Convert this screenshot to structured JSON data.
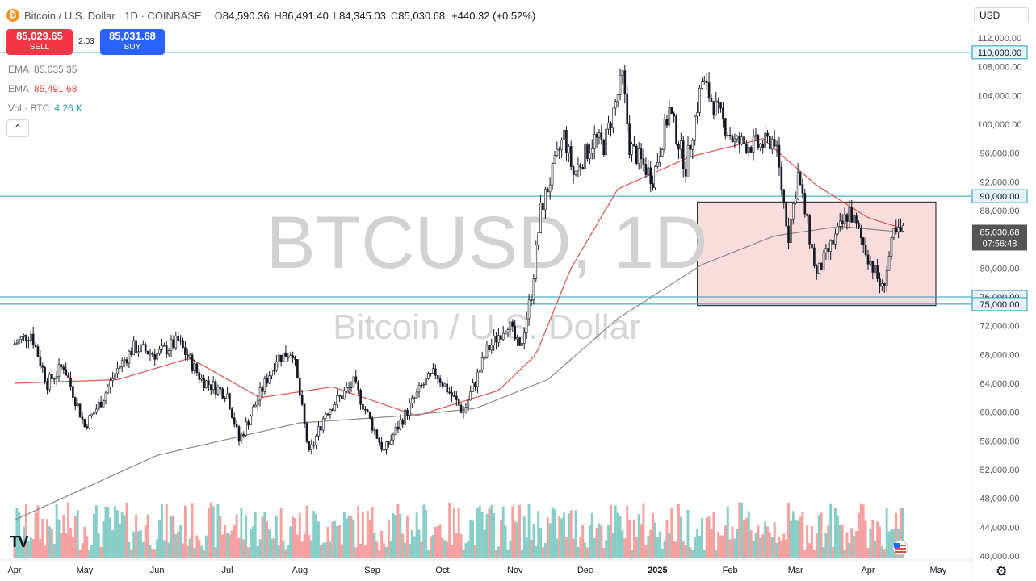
{
  "header": {
    "title": "Bitcoin / U.S. Dollar · 1D · COINBASE",
    "o_label": "O",
    "o_value": "84,590.36",
    "h_label": "H",
    "h_value": "86,491.40",
    "l_label": "L",
    "l_value": "84,345.03",
    "c_label": "C",
    "c_value": "85,030.68",
    "change": "+440.32 (+0.52%)"
  },
  "trade": {
    "sell_price": "85,029.65",
    "sell_label": "SELL",
    "spread": "2.03",
    "buy_price": "85,031.68",
    "buy_label": "BUY"
  },
  "indicators": [
    {
      "name": "EMA",
      "value": "85,035.35",
      "color": "#787b86"
    },
    {
      "name": "EMA",
      "value": "85,491.68",
      "color": "#e04c4c"
    },
    {
      "name": "Vol · BTC",
      "value": "4.26 K",
      "color": "#26a69a"
    }
  ],
  "currency": "USD",
  "watermark": {
    "main": "BTCUSD, 1D",
    "sub": "Bitcoin / U.S. Dollar"
  },
  "colors": {
    "up": "#26a69a",
    "down": "#ef5350",
    "level_line": "#1e9eb5",
    "ema_fast": "#d9534f",
    "ema_slow": "#888888",
    "box_fill": "#f5c6c6"
  },
  "chart_data": {
    "type": "candlestick",
    "y_ticks": [
      "112,000.00",
      "108,000.00",
      "104,000.00",
      "100,000.00",
      "96,000.00",
      "92,000.00",
      "88,000.00",
      "84,000.00",
      "80,000.00",
      "76,000.00",
      "72,000.00",
      "68,000.00",
      "64,000.00",
      "60,000.00",
      "56,000.00",
      "52,000.00",
      "48,000.00",
      "44,000.00",
      "40,000.00"
    ],
    "y_tick_values": [
      112000,
      108000,
      104000,
      100000,
      96000,
      92000,
      88000,
      84000,
      80000,
      76000,
      72000,
      68000,
      64000,
      60000,
      56000,
      52000,
      48000,
      44000,
      40000
    ],
    "x_labels": [
      "Apr",
      "May",
      "Jun",
      "Jul",
      "Aug",
      "Sep",
      "Oct",
      "Nov",
      "Dec",
      "2025",
      "Feb",
      "Mar",
      "Apr",
      "May"
    ],
    "horizontal_levels": [
      {
        "value": 110000,
        "label": "110,000.00"
      },
      {
        "value": 90000,
        "label": "90,000.00"
      },
      {
        "value": 76000,
        "label": "76,000.00"
      },
      {
        "value": 75000,
        "label": "75,000.00"
      }
    ],
    "range_box": {
      "top": 89200,
      "bottom": 74800,
      "start": "2025-01-18",
      "end": "2025-04-30"
    },
    "current_price": {
      "value": 85030.68,
      "label": "85,030.68",
      "countdown": "07:56:48"
    },
    "close_path": [
      [
        "2024-04-01",
        69500
      ],
      [
        "2024-04-08",
        71000
      ],
      [
        "2024-04-15",
        64000
      ],
      [
        "2024-04-22",
        66500
      ],
      [
        "2024-05-01",
        58000
      ],
      [
        "2024-05-08",
        61500
      ],
      [
        "2024-05-15",
        66000
      ],
      [
        "2024-05-22",
        69000
      ],
      [
        "2024-06-01",
        68000
      ],
      [
        "2024-06-10",
        69800
      ],
      [
        "2024-06-20",
        64500
      ],
      [
        "2024-07-01",
        62500
      ],
      [
        "2024-07-06",
        56000
      ],
      [
        "2024-07-15",
        62500
      ],
      [
        "2024-07-22",
        67500
      ],
      [
        "2024-07-29",
        68500
      ],
      [
        "2024-08-05",
        54000
      ],
      [
        "2024-08-12",
        60000
      ],
      [
        "2024-08-24",
        64000
      ],
      [
        "2024-09-06",
        54500
      ],
      [
        "2024-09-12",
        58000
      ],
      [
        "2024-09-22",
        63500
      ],
      [
        "2024-09-28",
        65500
      ],
      [
        "2024-10-10",
        60000
      ],
      [
        "2024-10-20",
        68500
      ],
      [
        "2024-10-29",
        72500
      ],
      [
        "2024-11-03",
        68500
      ],
      [
        "2024-11-08",
        76500
      ],
      [
        "2024-11-12",
        88000
      ],
      [
        "2024-11-22",
        98500
      ],
      [
        "2024-11-26",
        93000
      ],
      [
        "2024-12-05",
        98000
      ],
      [
        "2024-12-09",
        97000
      ],
      [
        "2024-12-17",
        106500
      ],
      [
        "2024-12-20",
        97000
      ],
      [
        "2024-12-30",
        92500
      ],
      [
        "2025-01-06",
        102000
      ],
      [
        "2025-01-13",
        94000
      ],
      [
        "2025-01-20",
        106000
      ],
      [
        "2025-01-27",
        101500
      ],
      [
        "2025-02-03",
        97500
      ],
      [
        "2025-02-14",
        97000
      ],
      [
        "2025-02-20",
        98000
      ],
      [
        "2025-02-26",
        84500
      ],
      [
        "2025-03-02",
        93000
      ],
      [
        "2025-03-10",
        79000
      ],
      [
        "2025-03-16",
        83000
      ],
      [
        "2025-03-24",
        88000
      ],
      [
        "2025-03-31",
        82500
      ],
      [
        "2025-04-07",
        77000
      ],
      [
        "2025-04-12",
        84500
      ],
      [
        "2025-04-16",
        85030
      ]
    ],
    "ema_fast_path": [
      [
        "2024-04-01",
        64000
      ],
      [
        "2024-05-15",
        64500
      ],
      [
        "2024-06-15",
        67500
      ],
      [
        "2024-07-15",
        62000
      ],
      [
        "2024-08-15",
        63500
      ],
      [
        "2024-09-20",
        59500
      ],
      [
        "2024-10-25",
        63000
      ],
      [
        "2024-11-10",
        68000
      ],
      [
        "2024-11-25",
        80000
      ],
      [
        "2024-12-15",
        91000
      ],
      [
        "2025-01-15",
        95500
      ],
      [
        "2025-02-15",
        98000
      ],
      [
        "2025-03-10",
        91500
      ],
      [
        "2025-04-01",
        87000
      ],
      [
        "2025-04-16",
        85500
      ]
    ],
    "ema_slow_path": [
      [
        "2024-04-01",
        45000
      ],
      [
        "2024-06-01",
        54000
      ],
      [
        "2024-08-01",
        58500
      ],
      [
        "2024-09-15",
        59500
      ],
      [
        "2024-10-15",
        60500
      ],
      [
        "2024-11-15",
        64500
      ],
      [
        "2024-12-15",
        73000
      ],
      [
        "2025-01-20",
        80500
      ],
      [
        "2025-02-20",
        84500
      ],
      [
        "2025-03-20",
        85800
      ],
      [
        "2025-04-16",
        85000
      ]
    ]
  }
}
